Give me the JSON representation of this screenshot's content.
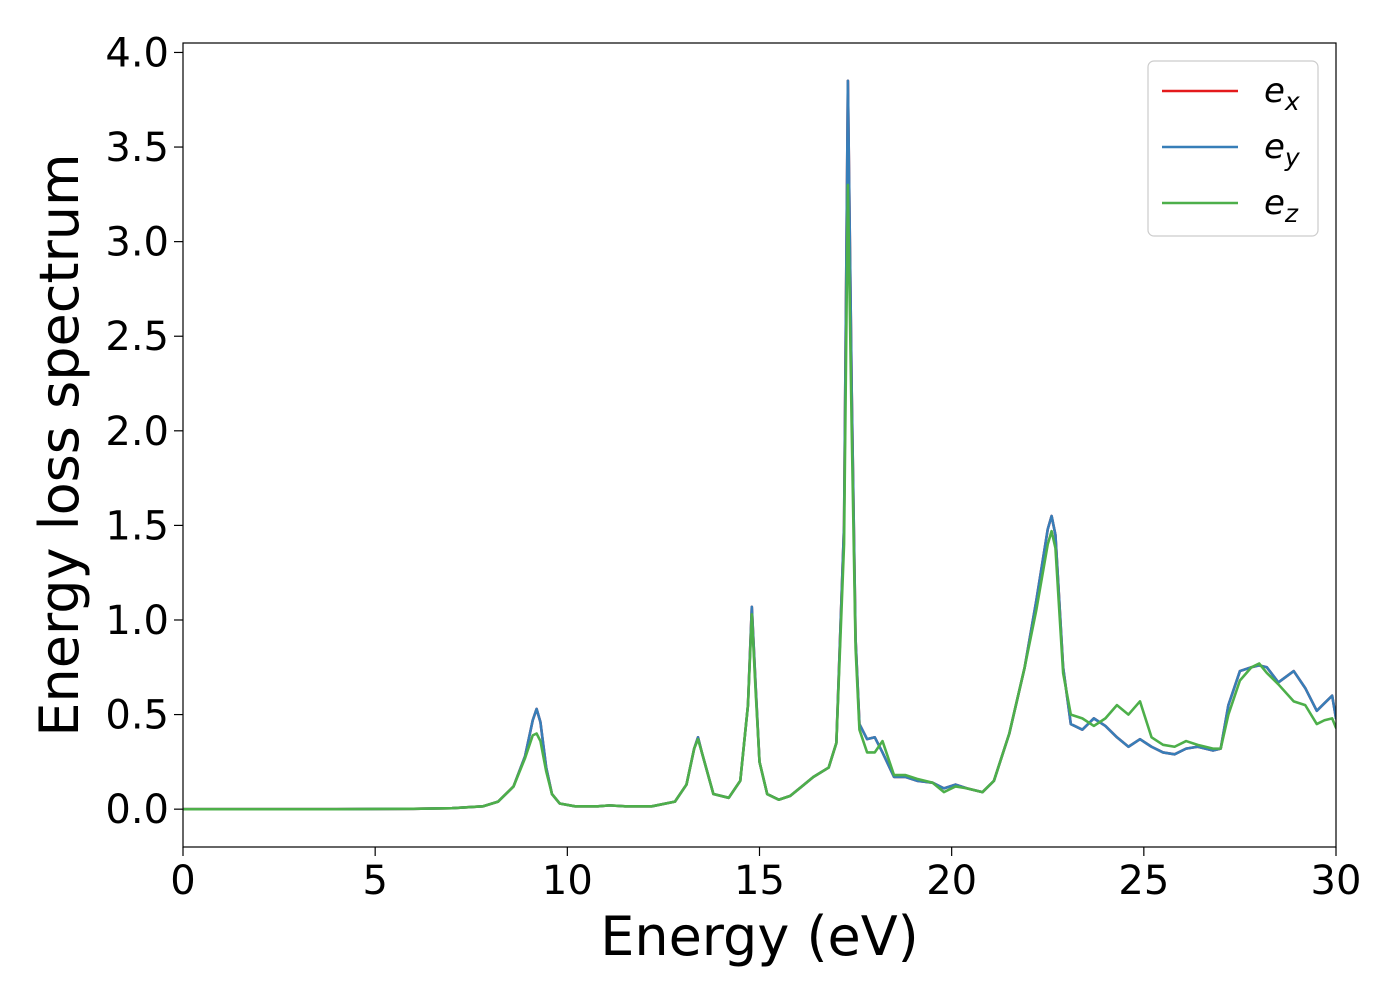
{
  "chart_data": {
    "type": "line",
    "title": "",
    "xlabel": "Energy (eV)",
    "ylabel": "Energy loss spectrum",
    "xlim": [
      0,
      30
    ],
    "ylim": [
      -0.2,
      4.05
    ],
    "xticks": [
      0,
      5,
      10,
      15,
      20,
      25,
      30
    ],
    "xtick_labels": [
      "0",
      "5",
      "10",
      "15",
      "20",
      "25",
      "30"
    ],
    "yticks": [
      0.0,
      0.5,
      1.0,
      1.5,
      2.0,
      2.5,
      3.0,
      3.5,
      4.0
    ],
    "ytick_labels": [
      "0.0",
      "0.5",
      "1.0",
      "1.5",
      "2.0",
      "2.5",
      "3.0",
      "3.5",
      "4.0"
    ],
    "grid": false,
    "legend_position": "top-right",
    "series": [
      {
        "name": "e_x",
        "legend_base": "e",
        "legend_sub": "x",
        "color": "#e41a1c",
        "x": [
          0,
          2,
          4,
          6,
          7,
          7.8,
          8.2,
          8.6,
          8.9,
          9.1,
          9.2,
          9.3,
          9.45,
          9.6,
          9.8,
          10.2,
          10.8,
          11.1,
          11.5,
          12.2,
          12.8,
          13.1,
          13.3,
          13.4,
          13.5,
          13.8,
          14.2,
          14.5,
          14.7,
          14.8,
          14.9,
          15.0,
          15.2,
          15.5,
          15.8,
          16.1,
          16.4,
          16.8,
          17.0,
          17.2,
          17.3,
          17.4,
          17.5,
          17.6,
          17.8,
          18.0,
          18.2,
          18.5,
          18.8,
          19.1,
          19.5,
          19.8,
          20.1,
          20.4,
          20.8,
          21.1,
          21.5,
          21.9,
          22.2,
          22.5,
          22.6,
          22.7,
          22.9,
          23.1,
          23.4,
          23.7,
          24.0,
          24.3,
          24.6,
          24.9,
          25.2,
          25.5,
          25.8,
          26.1,
          26.4,
          26.8,
          27.0,
          27.2,
          27.5,
          27.8,
          28.0,
          28.2,
          28.5,
          28.9,
          29.2,
          29.5,
          29.7,
          29.9,
          30.0
        ],
        "y": [
          0.0,
          0.0,
          0.0,
          0.002,
          0.005,
          0.015,
          0.04,
          0.12,
          0.28,
          0.47,
          0.53,
          0.46,
          0.22,
          0.08,
          0.03,
          0.015,
          0.015,
          0.02,
          0.015,
          0.015,
          0.04,
          0.13,
          0.32,
          0.38,
          0.3,
          0.08,
          0.06,
          0.15,
          0.55,
          1.07,
          0.65,
          0.25,
          0.08,
          0.05,
          0.07,
          0.12,
          0.17,
          0.22,
          0.35,
          1.5,
          3.85,
          2.2,
          0.9,
          0.45,
          0.37,
          0.38,
          0.3,
          0.17,
          0.17,
          0.15,
          0.14,
          0.11,
          0.13,
          0.11,
          0.09,
          0.15,
          0.4,
          0.75,
          1.1,
          1.48,
          1.55,
          1.45,
          0.75,
          0.45,
          0.42,
          0.48,
          0.44,
          0.38,
          0.33,
          0.37,
          0.33,
          0.3,
          0.29,
          0.32,
          0.33,
          0.31,
          0.32,
          0.55,
          0.73,
          0.75,
          0.76,
          0.75,
          0.67,
          0.73,
          0.64,
          0.52,
          0.56,
          0.6,
          0.48
        ]
      },
      {
        "name": "e_y",
        "legend_base": "e",
        "legend_sub": "y",
        "color": "#377eb8",
        "x": [
          0,
          2,
          4,
          6,
          7,
          7.8,
          8.2,
          8.6,
          8.9,
          9.1,
          9.2,
          9.3,
          9.45,
          9.6,
          9.8,
          10.2,
          10.8,
          11.1,
          11.5,
          12.2,
          12.8,
          13.1,
          13.3,
          13.4,
          13.5,
          13.8,
          14.2,
          14.5,
          14.7,
          14.8,
          14.9,
          15.0,
          15.2,
          15.5,
          15.8,
          16.1,
          16.4,
          16.8,
          17.0,
          17.2,
          17.3,
          17.4,
          17.5,
          17.6,
          17.8,
          18.0,
          18.2,
          18.5,
          18.8,
          19.1,
          19.5,
          19.8,
          20.1,
          20.4,
          20.8,
          21.1,
          21.5,
          21.9,
          22.2,
          22.5,
          22.6,
          22.7,
          22.9,
          23.1,
          23.4,
          23.7,
          24.0,
          24.3,
          24.6,
          24.9,
          25.2,
          25.5,
          25.8,
          26.1,
          26.4,
          26.8,
          27.0,
          27.2,
          27.5,
          27.8,
          28.0,
          28.2,
          28.5,
          28.9,
          29.2,
          29.5,
          29.7,
          29.9,
          30.0
        ],
        "y": [
          0.0,
          0.0,
          0.0,
          0.002,
          0.005,
          0.015,
          0.04,
          0.12,
          0.28,
          0.47,
          0.53,
          0.46,
          0.22,
          0.08,
          0.03,
          0.015,
          0.015,
          0.02,
          0.015,
          0.015,
          0.04,
          0.13,
          0.32,
          0.38,
          0.3,
          0.08,
          0.06,
          0.15,
          0.55,
          1.07,
          0.65,
          0.25,
          0.08,
          0.05,
          0.07,
          0.12,
          0.17,
          0.22,
          0.35,
          1.5,
          3.85,
          2.2,
          0.9,
          0.45,
          0.37,
          0.38,
          0.3,
          0.17,
          0.17,
          0.15,
          0.14,
          0.11,
          0.13,
          0.11,
          0.09,
          0.15,
          0.4,
          0.75,
          1.1,
          1.48,
          1.55,
          1.45,
          0.75,
          0.45,
          0.42,
          0.48,
          0.44,
          0.38,
          0.33,
          0.37,
          0.33,
          0.3,
          0.29,
          0.32,
          0.33,
          0.31,
          0.32,
          0.55,
          0.73,
          0.75,
          0.76,
          0.75,
          0.67,
          0.73,
          0.64,
          0.52,
          0.56,
          0.6,
          0.48
        ]
      },
      {
        "name": "e_z",
        "legend_base": "e",
        "legend_sub": "z",
        "color": "#4daf4a",
        "x": [
          0,
          2,
          4,
          6,
          7,
          7.8,
          8.2,
          8.6,
          8.9,
          9.1,
          9.2,
          9.3,
          9.45,
          9.6,
          9.8,
          10.2,
          10.8,
          11.1,
          11.5,
          12.2,
          12.8,
          13.1,
          13.3,
          13.4,
          13.5,
          13.8,
          14.2,
          14.5,
          14.7,
          14.8,
          14.9,
          15.0,
          15.2,
          15.5,
          15.8,
          16.1,
          16.4,
          16.8,
          17.0,
          17.2,
          17.3,
          17.4,
          17.5,
          17.6,
          17.8,
          18.0,
          18.2,
          18.5,
          18.8,
          19.1,
          19.5,
          19.8,
          20.1,
          20.4,
          20.8,
          21.1,
          21.5,
          21.9,
          22.2,
          22.5,
          22.6,
          22.7,
          22.9,
          23.1,
          23.4,
          23.7,
          24.0,
          24.3,
          24.6,
          24.9,
          25.2,
          25.5,
          25.8,
          26.1,
          26.4,
          26.8,
          27.0,
          27.2,
          27.5,
          27.8,
          28.0,
          28.2,
          28.5,
          28.9,
          29.2,
          29.5,
          29.7,
          29.9,
          30.0
        ],
        "y": [
          0.0,
          0.0,
          0.0,
          0.002,
          0.005,
          0.015,
          0.04,
          0.12,
          0.27,
          0.39,
          0.4,
          0.36,
          0.2,
          0.08,
          0.03,
          0.015,
          0.015,
          0.02,
          0.015,
          0.015,
          0.04,
          0.13,
          0.32,
          0.37,
          0.3,
          0.08,
          0.06,
          0.15,
          0.55,
          1.03,
          0.62,
          0.25,
          0.08,
          0.05,
          0.07,
          0.12,
          0.17,
          0.22,
          0.35,
          1.4,
          3.3,
          2.0,
          0.85,
          0.42,
          0.3,
          0.3,
          0.36,
          0.18,
          0.18,
          0.16,
          0.14,
          0.09,
          0.12,
          0.11,
          0.09,
          0.15,
          0.4,
          0.75,
          1.05,
          1.4,
          1.47,
          1.38,
          0.72,
          0.5,
          0.48,
          0.44,
          0.48,
          0.55,
          0.5,
          0.57,
          0.38,
          0.34,
          0.33,
          0.36,
          0.34,
          0.32,
          0.32,
          0.5,
          0.68,
          0.75,
          0.77,
          0.72,
          0.66,
          0.57,
          0.55,
          0.45,
          0.47,
          0.48,
          0.43
        ]
      }
    ]
  }
}
